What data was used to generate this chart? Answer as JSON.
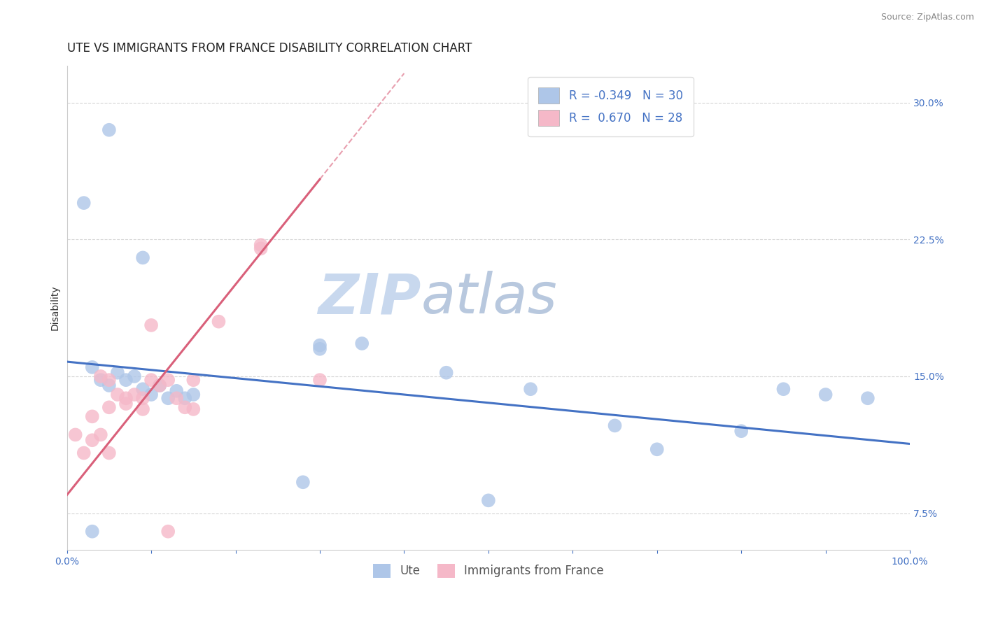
{
  "title": "UTE VS IMMIGRANTS FROM FRANCE DISABILITY CORRELATION CHART",
  "source_text": "Source: ZipAtlas.com",
  "xlabel": "",
  "ylabel": "Disability",
  "xlim": [
    0.0,
    1.0
  ],
  "ylim": [
    0.055,
    0.32
  ],
  "xticks": [
    0.0,
    0.1,
    0.2,
    0.3,
    0.4,
    0.5,
    0.6,
    0.7,
    0.8,
    0.9,
    1.0
  ],
  "yticks": [
    0.075,
    0.15,
    0.225,
    0.3
  ],
  "yticklabels_right": [
    "7.5%",
    "15.0%",
    "22.5%",
    "30.0%"
  ],
  "blue_label": "Ute",
  "pink_label": "Immigrants from France",
  "blue_R": "-0.349",
  "blue_N": "30",
  "pink_R": "0.670",
  "pink_N": "28",
  "blue_color": "#aec6e8",
  "pink_color": "#f5b8c8",
  "blue_line_color": "#4472c4",
  "pink_line_color": "#d9607a",
  "blue_points_x": [
    0.05,
    0.09,
    0.02,
    0.03,
    0.04,
    0.05,
    0.06,
    0.07,
    0.08,
    0.09,
    0.1,
    0.11,
    0.12,
    0.13,
    0.14,
    0.15,
    0.3,
    0.3,
    0.45,
    0.55,
    0.65,
    0.8,
    0.85,
    0.9,
    0.03,
    0.28,
    0.5,
    0.35,
    0.7,
    0.95
  ],
  "blue_points_y": [
    0.285,
    0.215,
    0.245,
    0.155,
    0.148,
    0.145,
    0.152,
    0.148,
    0.15,
    0.143,
    0.14,
    0.145,
    0.138,
    0.142,
    0.138,
    0.14,
    0.167,
    0.165,
    0.152,
    0.143,
    0.123,
    0.12,
    0.143,
    0.14,
    0.065,
    0.092,
    0.082,
    0.168,
    0.11,
    0.138
  ],
  "pink_points_x": [
    0.01,
    0.02,
    0.03,
    0.04,
    0.05,
    0.03,
    0.04,
    0.05,
    0.06,
    0.07,
    0.08,
    0.09,
    0.1,
    0.11,
    0.12,
    0.13,
    0.14,
    0.15,
    0.23,
    0.23,
    0.3,
    0.05,
    0.07,
    0.09,
    0.12,
    0.15,
    0.18,
    0.1
  ],
  "pink_points_y": [
    0.118,
    0.108,
    0.115,
    0.118,
    0.108,
    0.128,
    0.15,
    0.148,
    0.14,
    0.135,
    0.14,
    0.138,
    0.148,
    0.145,
    0.148,
    0.138,
    0.133,
    0.132,
    0.22,
    0.222,
    0.148,
    0.133,
    0.138,
    0.132,
    0.065,
    0.148,
    0.18,
    0.178
  ],
  "blue_line_x0": 0.0,
  "blue_line_y0": 0.158,
  "blue_line_x1": 1.0,
  "blue_line_y1": 0.113,
  "pink_line_solid_x0": 0.0,
  "pink_line_solid_y0": 0.085,
  "pink_line_solid_x1": 0.3,
  "pink_line_solid_y1": 0.258,
  "pink_line_dash_x0": 0.3,
  "pink_line_dash_y0": 0.258,
  "pink_line_dash_x1": 0.4,
  "pink_line_dash_y1": 0.316,
  "watermark_zip": "ZIP",
  "watermark_atlas": "atlas",
  "watermark_color_zip": "#c8d8ee",
  "watermark_color_atlas": "#b8c8de",
  "background_color": "#ffffff",
  "grid_color": "#cccccc",
  "title_fontsize": 12,
  "axis_label_fontsize": 10,
  "tick_fontsize": 10,
  "legend_fontsize": 12
}
